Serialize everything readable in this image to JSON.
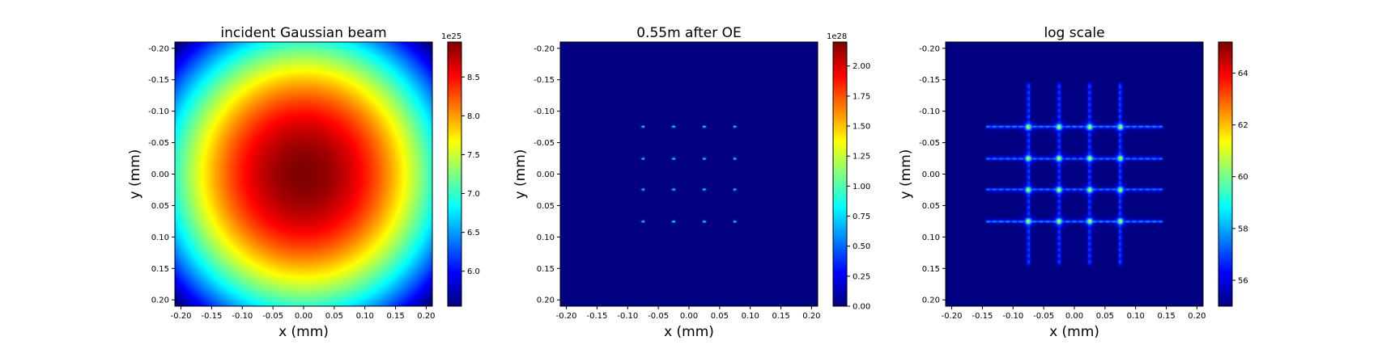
{
  "chart_data": [
    {
      "type": "heatmap",
      "title": "incident Gaussian beam",
      "xlabel": "x (mm)",
      "ylabel": "y (mm)",
      "xlim": [
        -0.21,
        0.21
      ],
      "ylim": [
        0.21,
        -0.21
      ],
      "x_ticks": [
        "-0.20",
        "-0.15",
        "-0.10",
        "-0.05",
        "0.00",
        "0.05",
        "0.10",
        "0.15",
        "0.20"
      ],
      "y_ticks": [
        "-0.20",
        "-0.15",
        "-0.10",
        "-0.05",
        "0.00",
        "0.05",
        "0.10",
        "0.15",
        "0.20"
      ],
      "colormap": "jet",
      "colorbar": {
        "range": [
          5.55,
          8.95
        ],
        "exponent_label": "1e25",
        "ticks": [
          "6.0",
          "6.5",
          "7.0",
          "7.5",
          "8.0",
          "8.5"
        ]
      },
      "pattern": "gaussian",
      "beam_waist_mm": 0.42
    },
    {
      "type": "heatmap",
      "title": "0.55m after OE",
      "xlabel": "x (mm)",
      "ylabel": "y (mm)",
      "xlim": [
        -0.21,
        0.21
      ],
      "ylim": [
        0.21,
        -0.21
      ],
      "x_ticks": [
        "-0.20",
        "-0.15",
        "-0.10",
        "-0.05",
        "0.00",
        "0.05",
        "0.10",
        "0.15",
        "0.20"
      ],
      "y_ticks": [
        "-0.20",
        "-0.15",
        "-0.10",
        "-0.05",
        "0.00",
        "0.05",
        "0.10",
        "0.15",
        "0.20"
      ],
      "colormap": "jet",
      "colorbar": {
        "range": [
          0,
          2.2
        ],
        "exponent_label": "1e28",
        "ticks": [
          "0.00",
          "0.25",
          "0.50",
          "0.75",
          "1.00",
          "1.25",
          "1.50",
          "1.75",
          "2.00"
        ]
      },
      "pattern": "spot_grid",
      "spot_positions_mm": [
        -0.075,
        -0.025,
        0.025,
        0.075
      ]
    },
    {
      "type": "heatmap",
      "title": "log scale",
      "xlabel": "x (mm)",
      "ylabel": "y (mm)",
      "xlim": [
        -0.21,
        0.21
      ],
      "ylim": [
        0.21,
        -0.21
      ],
      "x_ticks": [
        "-0.20",
        "-0.15",
        "-0.10",
        "-0.05",
        "0.00",
        "0.05",
        "0.10",
        "0.15",
        "0.20"
      ],
      "y_ticks": [
        "-0.20",
        "-0.15",
        "-0.10",
        "-0.05",
        "0.00",
        "0.05",
        "0.10",
        "0.15",
        "0.20"
      ],
      "colormap": "jet",
      "colorbar": {
        "range": [
          55,
          65.2
        ],
        "exponent_label": "",
        "ticks": [
          "56",
          "58",
          "60",
          "62",
          "64"
        ]
      },
      "pattern": "log_grid",
      "spot_positions_mm": [
        -0.075,
        -0.025,
        0.025,
        0.075
      ],
      "streak_extent_mm": 0.145
    }
  ]
}
